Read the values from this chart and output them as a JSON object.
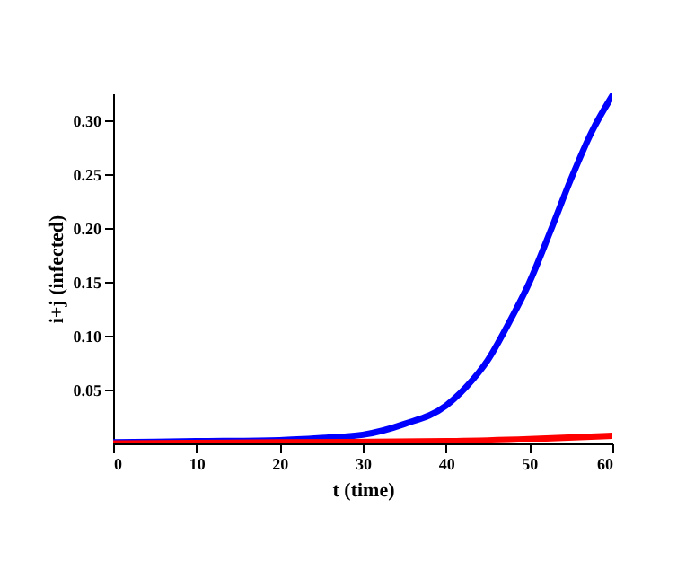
{
  "chart_data": {
    "type": "line",
    "xlabel": "t (time)",
    "ylabel": "i+j (infected)",
    "xlim": [
      0,
      60
    ],
    "ylim": [
      0,
      0.325
    ],
    "xticks": [
      0,
      10,
      20,
      30,
      40,
      50,
      60
    ],
    "yticks": [
      0.05,
      {
        "value": 0.1,
        "label": "0.10"
      },
      0.15,
      {
        "value": 0.2,
        "label": "0.20"
      },
      0.25,
      {
        "value": 0.3,
        "label": "0.30"
      }
    ],
    "grid": false,
    "legend": false,
    "marker": "none",
    "line_style": "solid",
    "series": [
      {
        "color": "#0000ff",
        "x": [
          0,
          10,
          20,
          25,
          30,
          35,
          40,
          42.5,
          45,
          47.5,
          50,
          52.5,
          55,
          57.5,
          60
        ],
        "values": [
          0.001,
          0.002,
          0.003,
          0.005,
          0.008,
          0.018,
          0.035,
          0.053,
          0.077,
          0.111,
          0.149,
          0.196,
          0.245,
          0.289,
          0.323
        ]
      },
      {
        "color": "#ff0000",
        "x": [
          0,
          20,
          40,
          50,
          60
        ],
        "values": [
          0.0,
          0.001,
          0.002,
          0.004,
          0.007
        ]
      }
    ]
  }
}
